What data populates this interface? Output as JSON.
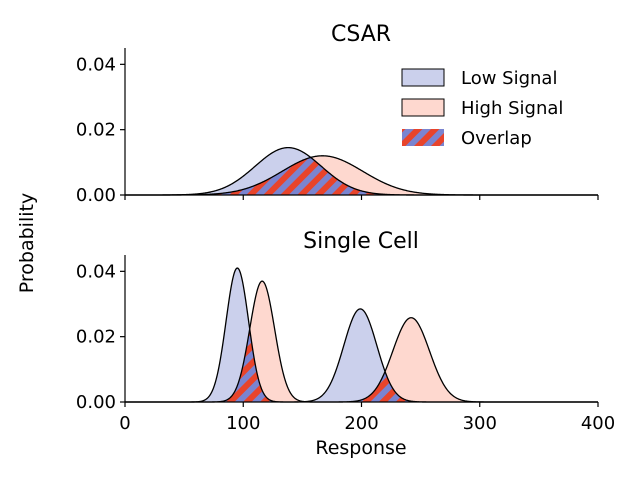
{
  "chart_data": {
    "type": "area",
    "ylabel": "Probability",
    "xlabel": "Response",
    "xlim": [
      0,
      400
    ],
    "x_ticks": [
      0,
      100,
      200,
      300,
      400
    ],
    "x_tick_labels": [
      "0",
      "100",
      "200",
      "300",
      "400"
    ],
    "colors": {
      "low": "#cbd0ec",
      "high": "#fed8cf",
      "overlap_a": "#e8442b",
      "overlap_b": "#7a84d0",
      "outline": "#000000"
    },
    "legend": {
      "position": "top-right",
      "entries": [
        {
          "key": "low",
          "label": "Low Signal"
        },
        {
          "key": "high",
          "label": "High Signal"
        },
        {
          "key": "overlap",
          "label": "Overlap"
        }
      ]
    },
    "panels": [
      {
        "id": "csar",
        "title": "CSAR",
        "ylim": [
          0,
          0.045
        ],
        "y_ticks": [
          0.0,
          0.02,
          0.04
        ],
        "y_tick_labels": [
          "0.00",
          "0.02",
          "0.04"
        ],
        "show_x_tick_labels": false,
        "series": [
          {
            "key": "low",
            "name": "Low Signal",
            "peaks": [
              {
                "mean": 138,
                "sd": 28,
                "peak": 0.0145
              }
            ]
          },
          {
            "key": "high",
            "name": "High Signal",
            "peaks": [
              {
                "mean": 167,
                "sd": 34,
                "peak": 0.012
              }
            ]
          }
        ]
      },
      {
        "id": "single-cell",
        "title": "Single Cell",
        "ylim": [
          0,
          0.045
        ],
        "y_ticks": [
          0.0,
          0.02,
          0.04
        ],
        "y_tick_labels": [
          "0.00",
          "0.02",
          "0.04"
        ],
        "show_x_tick_labels": true,
        "series": [
          {
            "key": "low",
            "name": "Low Signal",
            "peaks": [
              {
                "mean": 95,
                "sd": 9.5,
                "peak": 0.041
              },
              {
                "mean": 199,
                "sd": 14,
                "peak": 0.0285
              }
            ]
          },
          {
            "key": "high",
            "name": "High Signal",
            "peaks": [
              {
                "mean": 116,
                "sd": 10.5,
                "peak": 0.037
              },
              {
                "mean": 242,
                "sd": 15.5,
                "peak": 0.0258
              }
            ]
          }
        ]
      }
    ]
  }
}
